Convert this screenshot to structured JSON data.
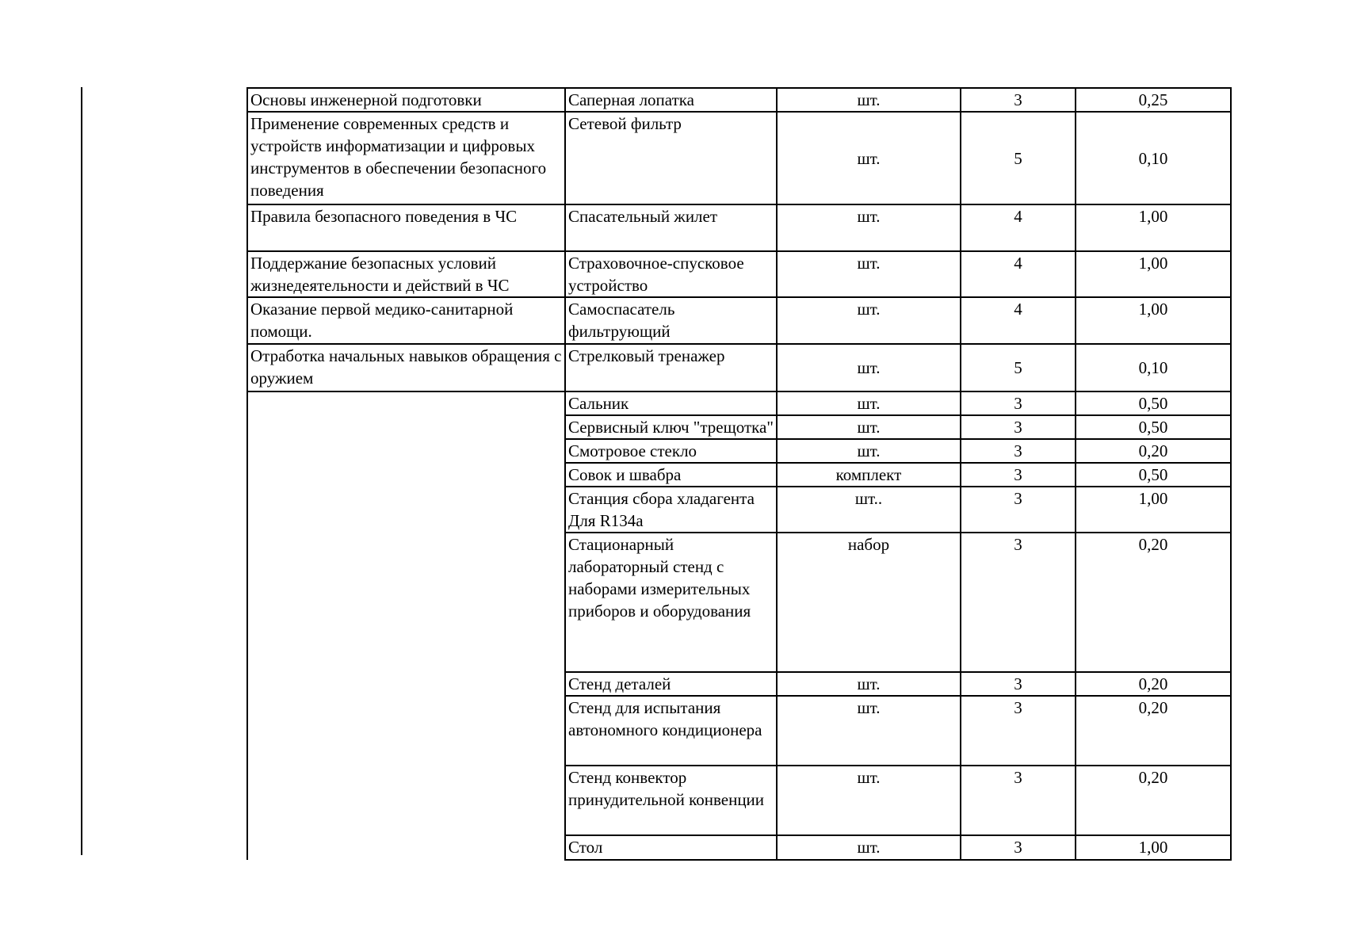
{
  "table": {
    "rows": [
      {
        "topic": "Основы инженерной подготовки",
        "item": "Саперная лопатка",
        "unit": "шт.",
        "qty": "3",
        "value": "0,25"
      },
      {
        "topic": "Применение современных средств и устройств информатизации и цифровых инструментов в обеспечении безопасного поведения",
        "item": "Сетевой фильтр",
        "unit": "шт.",
        "qty": "5",
        "value": "0,10"
      },
      {
        "topic": " Правила безопасного поведения в ЧС",
        "item": "Спасательный жилет",
        "unit": "шт.",
        "qty": "4",
        "value": "1,00"
      },
      {
        "topic": "Поддержание безопасных условий жизнедеятельности и действий в ЧС",
        "item": "Страховочное-спусковое устройство",
        "unit": "шт.",
        "qty": "4",
        "value": "1,00"
      },
      {
        "topic": "Оказание первой медико-санитарной помощи.",
        "item": "Самоспасатель фильтрующий",
        "unit": "шт.",
        "qty": "4",
        "value": "1,00"
      },
      {
        "topic": "Отработка начальных навыков обращения с оружием",
        "item": "Стрелковый тренажер",
        "unit": "шт.",
        "qty": "5",
        "value": "0,10"
      },
      {
        "topic": "",
        "item": "Сальник",
        "unit": "шт.",
        "qty": "3",
        "value": "0,50"
      },
      {
        "item": "Сервисный ключ \"трещотка\"",
        "unit": "шт.",
        "qty": "3",
        "value": "0,50"
      },
      {
        "item": "Смотровое стекло",
        "unit": "шт.",
        "qty": "3",
        "value": "0,20"
      },
      {
        "item": "Совок и швабра",
        "unit": "комплект",
        "qty": "3",
        "value": "0,50"
      },
      {
        "item": "Станция сбора хладагента Для R134a",
        "unit": "шт..",
        "qty": "3",
        "value": "1,00"
      },
      {
        "item": "Стационарный лабораторный стенд с наборами измерительных приборов и оборудования",
        "unit": "набор",
        "qty": "3",
        "value": "0,20"
      },
      {
        "item": "Стенд деталей",
        "unit": "шт.",
        "qty": "3",
        "value": "0,20"
      },
      {
        "item": "Стенд для испытания автономного кондиционера",
        "unit": "шт.",
        "qty": "3",
        "value": "0,20"
      },
      {
        "item": "Стенд конвектор принудительной конвенции",
        "unit": "шт.",
        "qty": "3",
        "value": "0,20"
      },
      {
        "item": "Стол",
        "unit": "шт.",
        "qty": "3",
        "value": "1,00"
      }
    ]
  }
}
